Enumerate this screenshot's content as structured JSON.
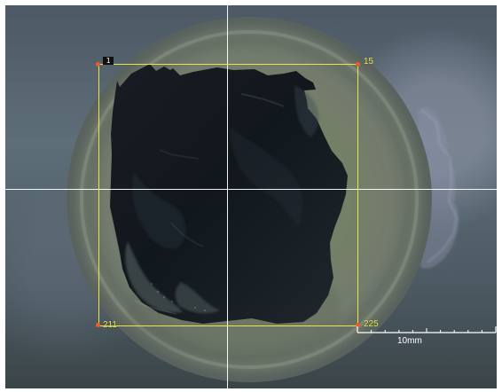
{
  "viewer": {
    "roi_id": "1",
    "corners": {
      "top_right": "15",
      "bottom_left": "211",
      "bottom_right": "225"
    },
    "scale_bar": {
      "label": "10mm"
    }
  }
}
